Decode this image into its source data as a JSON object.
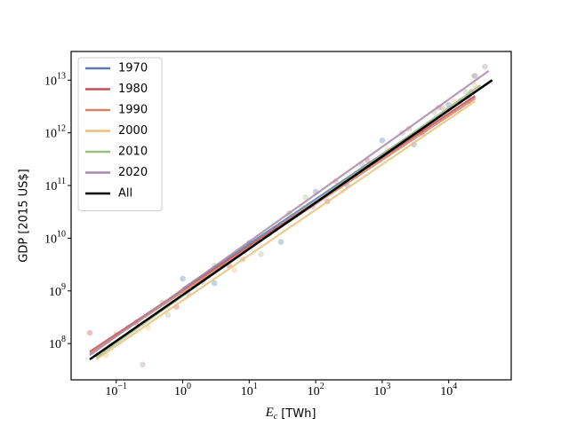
{
  "chart_data": {
    "type": "scatter",
    "xlabel": {
      "symbol": "E",
      "subscript": "c",
      "unit": "[TWh]"
    },
    "ylabel": "GDP [2015 US$]",
    "log_x": true,
    "log_y": true,
    "legend": "upper left",
    "xlim": [
      0.021,
      87000
    ],
    "ylim": [
      20500000,
      35000000000000
    ],
    "xticks": [
      {
        "value": 0.1,
        "label": "10",
        "exponent": "−1"
      },
      {
        "value": 1,
        "label": "10",
        "exponent": "0"
      },
      {
        "value": 10,
        "label": "10",
        "exponent": "1"
      },
      {
        "value": 100,
        "label": "10",
        "exponent": "2"
      },
      {
        "value": 1000,
        "label": "10",
        "exponent": "3"
      },
      {
        "value": 10000,
        "label": "10",
        "exponent": "4"
      }
    ],
    "yticks": [
      {
        "value": 100000000,
        "label": "10",
        "exponent": "8"
      },
      {
        "value": 1000000000,
        "label": "10",
        "exponent": "9"
      },
      {
        "value": 10000000000,
        "label": "10",
        "exponent": "10"
      },
      {
        "value": 100000000000,
        "label": "10",
        "exponent": "11"
      },
      {
        "value": 1000000000000,
        "label": "10",
        "exponent": "12"
      },
      {
        "value": 10000000000000,
        "label": "10",
        "exponent": "13"
      }
    ],
    "series": [
      {
        "name": "1970",
        "color": "#5a7ca8",
        "x": [
          1,
          20000
        ],
        "values": [
          1100000000,
          5000000000000
        ],
        "points_x": [
          1,
          3,
          10,
          30,
          100,
          300,
          1000,
          3000,
          10000,
          20000
        ],
        "points_y": [
          1700000000,
          1400000000,
          8100000000,
          8500000000,
          76000000000,
          100000000000,
          720000000000,
          600000000000,
          3400000000000,
          5000000000000
        ]
      },
      {
        "name": "1980",
        "color": "#c44e52",
        "x": [
          0.04,
          25000
        ],
        "values": [
          70000000,
          5000000000000
        ],
        "points_x": [
          0.04,
          0.2,
          0.8,
          5,
          25,
          150,
          600,
          4000,
          15000,
          22000
        ],
        "points_y": [
          160000000,
          250000000,
          500000000,
          3000000000,
          15000000000,
          50000000000,
          300000000000,
          1000000000000,
          4000000000000,
          6000000000000
        ]
      },
      {
        "name": "1990",
        "color": "#d08468",
        "x": [
          0.04,
          25000
        ],
        "values": [
          65000000,
          4500000000000
        ],
        "points_x": [
          0.1,
          0.5,
          2,
          8,
          40,
          200,
          800,
          2500,
          8000,
          20000
        ],
        "points_y": [
          150000000,
          600000000,
          1500000000,
          4000000000,
          30000000000,
          120000000000,
          300000000000,
          1200000000000,
          3000000000000,
          4000000000000
        ]
      },
      {
        "name": "2000",
        "color": "#e8c27c",
        "x": [
          0.05,
          25000
        ],
        "values": [
          50000000,
          4000000000000
        ],
        "points_x": [
          0.07,
          0.3,
          1.5,
          6,
          60,
          250,
          1200,
          5000,
          12000,
          25000
        ],
        "points_y": [
          60000000,
          200000000,
          1500000000,
          2500000000,
          40000000000,
          80000000000,
          500000000000,
          1500000000000,
          4000000000000,
          8000000000000
        ]
      },
      {
        "name": "2010",
        "color": "#9dbd80",
        "x": [
          0.05,
          30000
        ],
        "values": [
          55000000,
          8000000000000
        ],
        "points_x": [
          0.15,
          0.6,
          3,
          15,
          70,
          400,
          1500,
          6000,
          18000,
          24000
        ],
        "points_y": [
          200000000,
          350000000,
          3000000000,
          5000000000,
          60000000000,
          150000000000,
          500000000000,
          2500000000000,
          6000000000000,
          12000000000000
        ]
      },
      {
        "name": "2020",
        "color": "#a98aaa",
        "x": [
          0.04,
          40000
        ],
        "values": [
          60000000,
          15000000000000
        ],
        "points_x": [
          0.25,
          1.2,
          4,
          20,
          90,
          500,
          2000,
          7000,
          25000,
          35000
        ],
        "points_y": [
          40000000,
          900000000,
          3000000000,
          12000000000,
          40000000000,
          250000000000,
          1000000000000,
          3000000000000,
          12000000000000,
          18000000000000
        ]
      },
      {
        "name": "All",
        "color": "#000000",
        "x": [
          0.04,
          45000
        ],
        "values": [
          50000000,
          10000000000000
        ]
      }
    ]
  }
}
